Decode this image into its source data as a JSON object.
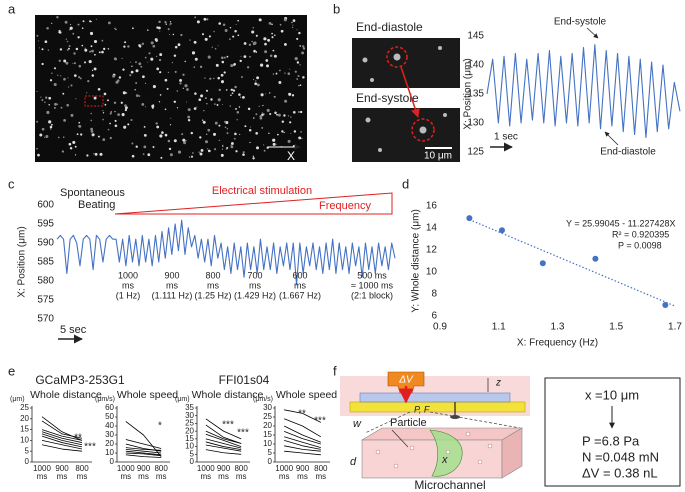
{
  "figure": {
    "panel_labels": [
      "a",
      "b",
      "c",
      "d",
      "e",
      "f"
    ],
    "panel_a": {
      "axis_label": "X"
    },
    "panel_b": {
      "image_labels": [
        "End-diastole",
        "End-systole"
      ],
      "scale_bar": "10 μm"
    },
    "panel_e": {
      "groups": [
        "GCaMP3-253G1",
        "FFI01s04"
      ]
    },
    "panel_f": {
      "labels": [
        "ΔV",
        "z",
        "P, F",
        "w",
        "d",
        "Particle",
        "x",
        "Microchannel"
      ],
      "results": [
        "x =10 μm",
        "P =6.8 Pa",
        "N =0.048 mN",
        "ΔV = 0.38 nL"
      ]
    }
  },
  "chart_data": [
    {
      "type": "line",
      "ylabel": "X: Position (μm)",
      "ylim": [
        125,
        145
      ],
      "yticks": [
        125,
        130,
        135,
        140,
        145
      ],
      "color": "#4472c4",
      "values": [
        135,
        141,
        130,
        141.5,
        129.5,
        142,
        130,
        141,
        130.5,
        142,
        130,
        142.5,
        129.5,
        141.5,
        130,
        142,
        129.5,
        143,
        130,
        143.5,
        129,
        142.5,
        129.5,
        142,
        128.5,
        141.5,
        128,
        141,
        127.5,
        140.5,
        128.5,
        140,
        129,
        137,
        132
      ],
      "annotations": [
        "End-systole",
        "End-diastole",
        "1 sec"
      ]
    },
    {
      "type": "line",
      "ylabel": "X: Position (μm)",
      "ylim": [
        570,
        600
      ],
      "yticks": [
        570,
        575,
        580,
        585,
        590,
        595,
        600
      ],
      "color": "#4472c4",
      "values": [
        591,
        592,
        591,
        582,
        591,
        592,
        590,
        584,
        591,
        592,
        591,
        583,
        592,
        591,
        585,
        591,
        592,
        591,
        591,
        585,
        591,
        584,
        592,
        585,
        591,
        584,
        592,
        585,
        591,
        584,
        592,
        585,
        593,
        586,
        594,
        587,
        595,
        588,
        596,
        587,
        594,
        589,
        592,
        586,
        591,
        585,
        591,
        584,
        592,
        586,
        590,
        583,
        589,
        582,
        590,
        583,
        589,
        581,
        590,
        583,
        589,
        582,
        591,
        583,
        589,
        583,
        590,
        582,
        589,
        584,
        590,
        583,
        590,
        579,
        590,
        582,
        589,
        584,
        590,
        583,
        589,
        582,
        590,
        583,
        591,
        582,
        590,
        583,
        589,
        582,
        590,
        584,
        589,
        581,
        590,
        583,
        589,
        582,
        590,
        584,
        589,
        583,
        590,
        586
      ],
      "annotations": [
        "Electrical stimulation",
        "Frequency",
        "5 sec"
      ],
      "spontaneous": [
        "Spontaneous",
        "Beating"
      ],
      "intervals": [
        [
          "1000",
          "ms",
          "(1 Hz)"
        ],
        [
          "900",
          "ms",
          "(1.111 Hz)"
        ],
        [
          "800",
          "ms",
          "(1.25 Hz)"
        ],
        [
          "700",
          "ms",
          "(1.429 Hz)"
        ],
        [
          "600",
          "ms",
          "(1.667 Hz)"
        ],
        [
          "500 ms",
          "≈ 1000 ms",
          "(2:1 block)"
        ]
      ]
    },
    {
      "type": "scatter",
      "xlabel": "X: Frequency (Hz)",
      "ylabel": "Y: Whole distance (μm)",
      "xlim": [
        0.9,
        1.7
      ],
      "xticks": [
        0.9,
        1.1,
        1.3,
        1.5,
        1.7
      ],
      "ylim": [
        6,
        16
      ],
      "yticks": [
        6,
        8,
        10,
        12,
        14,
        16
      ],
      "color": "#4472c4",
      "x": [
        1,
        1.111,
        1.25,
        1.429,
        1.667
      ],
      "values": [
        14.9,
        13.8,
        10.8,
        11.2,
        7
      ],
      "trendline": {
        "slope": -11.227428,
        "intercept": 25.99045
      },
      "annotations": [
        "Y = 25.99045 - 11.227428X",
        "R² = 0.920395",
        "P = 0.0098"
      ]
    },
    {
      "type": "line",
      "title": "Whole distance",
      "ylabel": "(μm)",
      "ylim": [
        0,
        25
      ],
      "yticks": [
        0,
        5,
        10,
        15,
        20,
        25
      ],
      "categories": [
        "1000 ms",
        "900 ms",
        "800 ms"
      ],
      "color": "#000000",
      "series": [
        {
          "values": [
            21,
            14,
            10
          ]
        },
        {
          "values": [
            19,
            13,
            11
          ]
        },
        {
          "values": [
            15,
            12,
            10
          ]
        },
        {
          "values": [
            14,
            11,
            9
          ]
        },
        {
          "values": [
            13,
            10,
            8
          ]
        },
        {
          "values": [
            12,
            9,
            7
          ]
        },
        {
          "values": [
            10,
            8,
            6
          ]
        },
        {
          "values": [
            8,
            6,
            5
          ]
        }
      ],
      "annotations": [
        "**",
        "***"
      ]
    },
    {
      "type": "line",
      "title": "Whole speed",
      "ylabel": "(μm/s)",
      "ylim": [
        0,
        60
      ],
      "yticks": [
        0,
        10,
        20,
        30,
        40,
        50,
        60
      ],
      "categories": [
        "1000 ms",
        "900 ms",
        "800 ms"
      ],
      "color": "#000000",
      "series": [
        {
          "values": [
            45,
            30,
            6
          ]
        },
        {
          "values": [
            25,
            20,
            15
          ]
        },
        {
          "values": [
            20,
            15,
            12
          ]
        },
        {
          "values": [
            16,
            14,
            13
          ]
        },
        {
          "values": [
            14,
            12,
            10
          ]
        },
        {
          "values": [
            12,
            10,
            8
          ]
        },
        {
          "values": [
            10,
            9,
            7
          ]
        },
        {
          "values": [
            8,
            6,
            5
          ]
        }
      ],
      "annotations": [
        "*"
      ]
    },
    {
      "type": "line",
      "title": "Whole distance",
      "ylabel": "(μm)",
      "ylim": [
        0,
        35
      ],
      "yticks": [
        0,
        5,
        10,
        15,
        20,
        25,
        30,
        35
      ],
      "categories": [
        "1000 ms",
        "900 ms",
        "800 ms"
      ],
      "color": "#000000",
      "series": [
        {
          "values": [
            28,
            20,
            15
          ]
        },
        {
          "values": [
            24,
            16,
            12
          ]
        },
        {
          "values": [
            20,
            15,
            12
          ]
        },
        {
          "values": [
            18,
            14,
            10
          ]
        },
        {
          "values": [
            15,
            12,
            9
          ]
        },
        {
          "values": [
            13,
            10,
            8
          ]
        },
        {
          "values": [
            11,
            9,
            7
          ]
        },
        {
          "values": [
            8,
            6,
            5
          ]
        }
      ],
      "annotations": [
        "***",
        "***"
      ]
    },
    {
      "type": "line",
      "title": "Whole speed",
      "ylabel": "(μm/s)",
      "ylim": [
        0,
        30
      ],
      "yticks": [
        0,
        5,
        10,
        15,
        20,
        25,
        30
      ],
      "categories": [
        "1000 ms",
        "900 ms",
        "800 ms"
      ],
      "color": "#000000",
      "series": [
        {
          "values": [
            29,
            27,
            22
          ]
        },
        {
          "values": [
            24,
            20,
            14
          ]
        },
        {
          "values": [
            20,
            15,
            11
          ]
        },
        {
          "values": [
            17,
            13,
            10
          ]
        },
        {
          "values": [
            14,
            11,
            8
          ]
        },
        {
          "values": [
            12,
            9,
            7
          ]
        },
        {
          "values": [
            9,
            7,
            6
          ]
        },
        {
          "values": [
            6,
            5,
            4
          ]
        }
      ],
      "annotations": [
        "**",
        "***"
      ]
    }
  ]
}
